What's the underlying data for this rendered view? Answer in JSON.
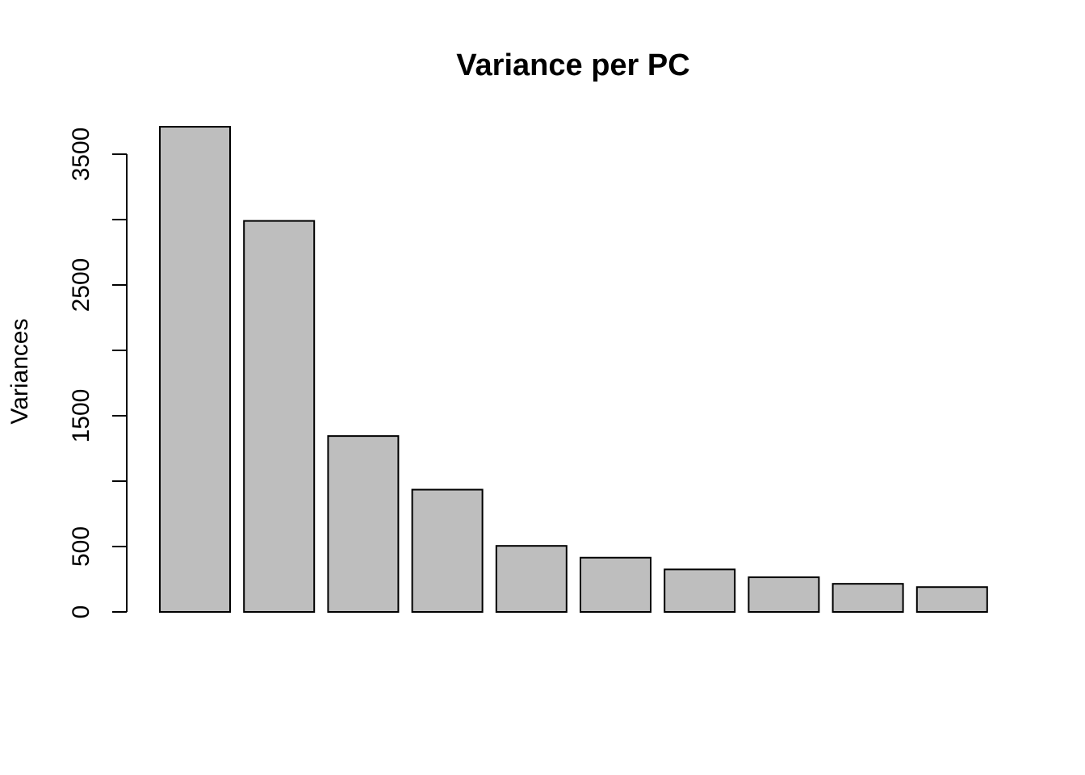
{
  "chart_data": {
    "type": "bar",
    "title": "Variance per PC",
    "xlabel": "",
    "ylabel": "Variances",
    "ylim": [
      0,
      3700
    ],
    "yticks": [
      0,
      500,
      1000,
      1500,
      2000,
      2500,
      3000,
      3500
    ],
    "ytick_labels": [
      "0",
      "500",
      "",
      "1500",
      "",
      "2500",
      "",
      "3500"
    ],
    "categories": [
      "",
      "",
      "",
      "",
      "",
      "",
      "",
      "",
      "",
      ""
    ],
    "values": [
      3710,
      2990,
      1345,
      935,
      505,
      415,
      325,
      265,
      215,
      190
    ],
    "grid": false,
    "bar_color": "#bebebe",
    "edge_color": "#000000"
  }
}
